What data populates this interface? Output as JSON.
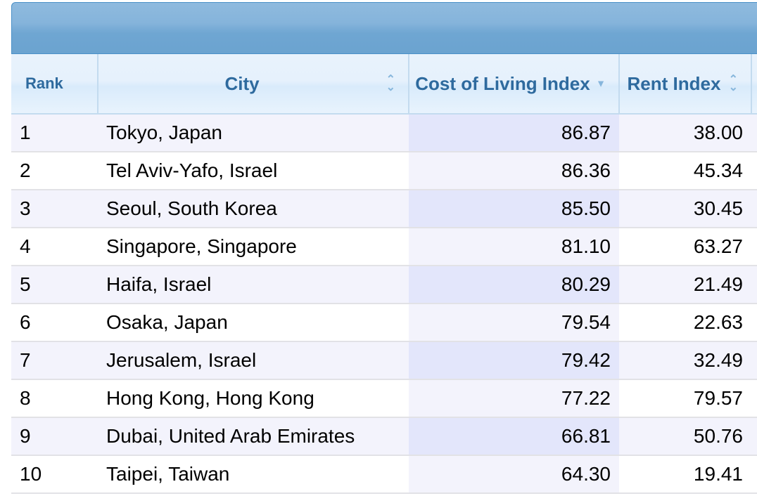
{
  "columns": {
    "rank": "Rank",
    "city": "City",
    "cost": "Cost of Living Index",
    "rent": "Rent Index"
  },
  "rows": [
    {
      "rank": "1",
      "city": "Tokyo, Japan",
      "cost": "86.87",
      "rent": "38.00"
    },
    {
      "rank": "2",
      "city": "Tel Aviv-Yafo, Israel",
      "cost": "86.36",
      "rent": "45.34"
    },
    {
      "rank": "3",
      "city": "Seoul, South Korea",
      "cost": "85.50",
      "rent": "30.45"
    },
    {
      "rank": "4",
      "city": "Singapore, Singapore",
      "cost": "81.10",
      "rent": "63.27"
    },
    {
      "rank": "5",
      "city": "Haifa, Israel",
      "cost": "80.29",
      "rent": "21.49"
    },
    {
      "rank": "6",
      "city": "Osaka, Japan",
      "cost": "79.54",
      "rent": "22.63"
    },
    {
      "rank": "7",
      "city": "Jerusalem, Israel",
      "cost": "79.42",
      "rent": "32.49"
    },
    {
      "rank": "8",
      "city": "Hong Kong, Hong Kong",
      "cost": "77.22",
      "rent": "79.57"
    },
    {
      "rank": "9",
      "city": "Dubai, United Arab Emirates",
      "cost": "66.81",
      "rent": "50.76"
    },
    {
      "rank": "10",
      "city": "Taipei, Taiwan",
      "cost": "64.30",
      "rent": "19.41"
    }
  ]
}
